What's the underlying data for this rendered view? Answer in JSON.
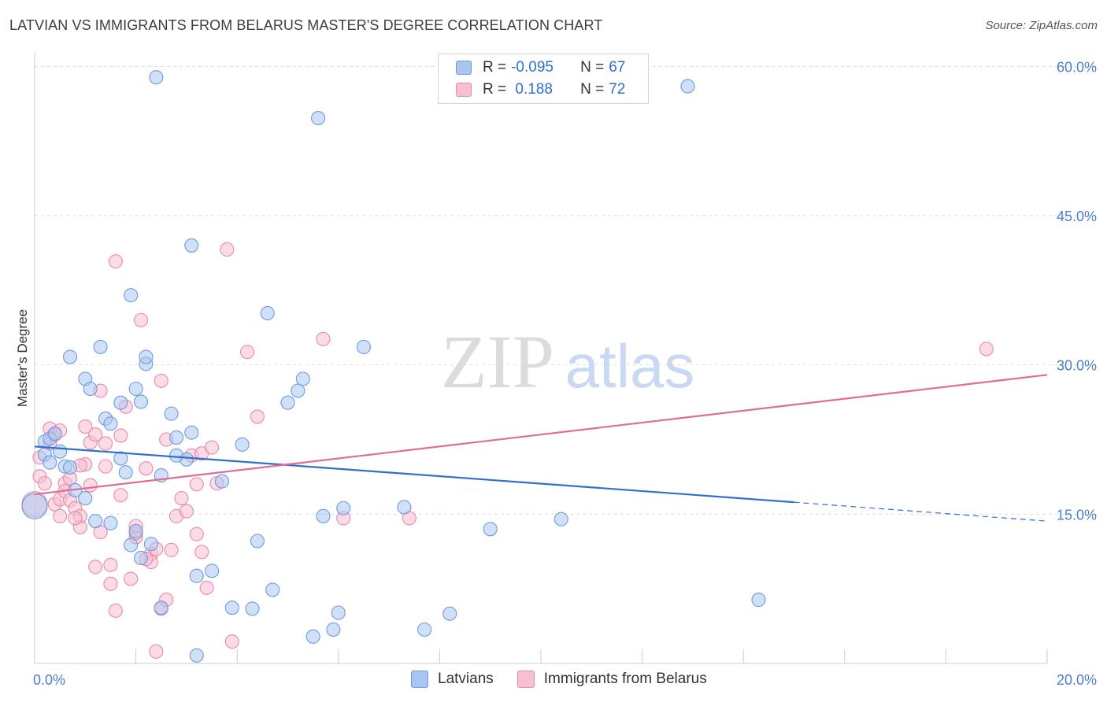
{
  "title": "LATVIAN VS IMMIGRANTS FROM BELARUS MASTER'S DEGREE CORRELATION CHART",
  "source": "Source: ZipAtlas.com",
  "watermark": {
    "zip": "ZIP",
    "atlas": "atlas"
  },
  "legend": {
    "rows": [
      {
        "r_label": "R = ",
        "r_value": "-0.095",
        "n_label": "N = ",
        "n_value": "67"
      },
      {
        "r_label": "R = ",
        "r_value": " 0.188",
        "n_label": "N = ",
        "n_value": "72"
      }
    ]
  },
  "bottom_legend": [
    {
      "label": "Latvians"
    },
    {
      "label": "Immigrants from Belarus"
    }
  ],
  "colors": {
    "blue_fill": "#a9c6f0",
    "blue_stroke": "#6f9ae0",
    "blue_line": "#2f6fd0",
    "pink_fill": "#f7bfd2",
    "pink_stroke": "#e98aa9",
    "pink_line": "#e06c98",
    "tick": "#4a7fd0"
  },
  "chart_data": {
    "type": "scatter",
    "title": "LATVIAN VS IMMIGRANTS FROM BELARUS MASTER'S DEGREE CORRELATION CHART",
    "xlabel": "",
    "ylabel": "Master's Degree",
    "xlim": [
      0,
      20
    ],
    "ylim": [
      0,
      60.5
    ],
    "x_tick_labels": [
      "0.0%",
      "20.0%"
    ],
    "y_ticks": [
      15,
      30,
      45,
      60
    ],
    "y_tick_labels": [
      "15.0%",
      "30.0%",
      "45.0%",
      "60.0%"
    ],
    "series": [
      {
        "name": "Latvians",
        "r": -0.095,
        "n": 67,
        "trend": {
          "x0": 0,
          "y0": 21.8,
          "x1": 15.0,
          "y1": 16.2,
          "dash_to_x": 20.0,
          "dash_to_y": 14.3
        },
        "points": [
          [
            0.0,
            15.8
          ],
          [
            0.2,
            22.3
          ],
          [
            0.3,
            22.6
          ],
          [
            0.4,
            23.1
          ],
          [
            0.2,
            21.0
          ],
          [
            0.3,
            20.2
          ],
          [
            0.5,
            21.3
          ],
          [
            0.6,
            19.8
          ],
          [
            0.7,
            19.7
          ],
          [
            0.8,
            17.4
          ],
          [
            0.7,
            30.8
          ],
          [
            1.0,
            28.6
          ],
          [
            1.1,
            27.6
          ],
          [
            1.3,
            31.8
          ],
          [
            1.4,
            24.6
          ],
          [
            1.5,
            24.1
          ],
          [
            1.7,
            26.2
          ],
          [
            1.7,
            20.6
          ],
          [
            1.8,
            19.2
          ],
          [
            1.9,
            37.0
          ],
          [
            2.0,
            27.6
          ],
          [
            2.1,
            26.3
          ],
          [
            2.2,
            30.1
          ],
          [
            2.2,
            30.8
          ],
          [
            2.4,
            58.9
          ],
          [
            2.5,
            18.9
          ],
          [
            2.7,
            25.1
          ],
          [
            2.8,
            22.7
          ],
          [
            3.0,
            20.5
          ],
          [
            3.1,
            23.2
          ],
          [
            3.1,
            42.0
          ],
          [
            3.2,
            8.8
          ],
          [
            3.2,
            0.8
          ],
          [
            3.5,
            9.3
          ],
          [
            3.7,
            18.3
          ],
          [
            3.9,
            5.6
          ],
          [
            4.1,
            22.0
          ],
          [
            4.3,
            5.5
          ],
          [
            4.4,
            12.3
          ],
          [
            4.6,
            35.2
          ],
          [
            4.7,
            7.4
          ],
          [
            5.0,
            26.2
          ],
          [
            5.2,
            27.4
          ],
          [
            5.3,
            28.6
          ],
          [
            5.5,
            2.7
          ],
          [
            5.6,
            54.8
          ],
          [
            5.7,
            14.8
          ],
          [
            5.9,
            3.4
          ],
          [
            6.0,
            5.1
          ],
          [
            6.1,
            15.6
          ],
          [
            6.5,
            31.8
          ],
          [
            7.3,
            15.7
          ],
          [
            7.7,
            3.4
          ],
          [
            8.2,
            5.0
          ],
          [
            9.0,
            13.5
          ],
          [
            10.4,
            14.5
          ],
          [
            12.9,
            58.0
          ],
          [
            14.3,
            6.4
          ],
          [
            1.5,
            14.1
          ],
          [
            1.9,
            11.9
          ],
          [
            2.0,
            13.3
          ],
          [
            2.1,
            10.6
          ],
          [
            2.3,
            12.0
          ],
          [
            2.5,
            5.6
          ],
          [
            1.0,
            16.6
          ],
          [
            1.2,
            14.3
          ],
          [
            2.8,
            20.9
          ]
        ]
      },
      {
        "name": "Immigrants from Belarus",
        "r": 0.188,
        "n": 72,
        "trend": {
          "x0": 0,
          "y0": 17.0,
          "x1": 20.0,
          "y1": 29.0
        },
        "points": [
          [
            0.0,
            16.0
          ],
          [
            0.1,
            20.7
          ],
          [
            0.1,
            18.8
          ],
          [
            0.2,
            18.1
          ],
          [
            0.3,
            23.6
          ],
          [
            0.3,
            22.1
          ],
          [
            0.4,
            23.0
          ],
          [
            0.4,
            16.0
          ],
          [
            0.5,
            16.5
          ],
          [
            0.5,
            14.8
          ],
          [
            0.6,
            18.1
          ],
          [
            0.6,
            17.3
          ],
          [
            0.7,
            16.4
          ],
          [
            0.7,
            18.6
          ],
          [
            0.8,
            15.6
          ],
          [
            0.9,
            13.7
          ],
          [
            0.9,
            14.8
          ],
          [
            1.0,
            20.0
          ],
          [
            1.0,
            23.8
          ],
          [
            1.1,
            22.2
          ],
          [
            1.1,
            17.9
          ],
          [
            1.2,
            23.0
          ],
          [
            1.3,
            27.4
          ],
          [
            1.4,
            22.1
          ],
          [
            1.4,
            19.8
          ],
          [
            1.5,
            9.9
          ],
          [
            1.5,
            8.0
          ],
          [
            1.6,
            40.4
          ],
          [
            1.7,
            22.9
          ],
          [
            1.7,
            16.9
          ],
          [
            1.8,
            25.8
          ],
          [
            1.9,
            8.5
          ],
          [
            2.0,
            12.7
          ],
          [
            2.0,
            13.1
          ],
          [
            2.1,
            34.5
          ],
          [
            2.2,
            19.6
          ],
          [
            2.3,
            11.0
          ],
          [
            2.3,
            10.2
          ],
          [
            2.4,
            11.5
          ],
          [
            2.4,
            1.2
          ],
          [
            2.5,
            5.5
          ],
          [
            2.5,
            28.4
          ],
          [
            2.6,
            22.5
          ],
          [
            2.7,
            11.4
          ],
          [
            2.8,
            14.8
          ],
          [
            2.9,
            16.6
          ],
          [
            3.0,
            15.3
          ],
          [
            3.1,
            20.9
          ],
          [
            3.2,
            18.0
          ],
          [
            3.3,
            21.1
          ],
          [
            3.3,
            11.2
          ],
          [
            3.4,
            7.6
          ],
          [
            3.5,
            21.7
          ],
          [
            3.6,
            18.1
          ],
          [
            3.8,
            41.6
          ],
          [
            3.9,
            2.2
          ],
          [
            4.2,
            31.3
          ],
          [
            4.4,
            24.8
          ],
          [
            5.7,
            32.6
          ],
          [
            6.1,
            14.6
          ],
          [
            7.4,
            14.6
          ],
          [
            18.8,
            31.6
          ],
          [
            1.2,
            9.7
          ],
          [
            1.6,
            5.3
          ],
          [
            2.2,
            10.5
          ],
          [
            2.0,
            13.8
          ],
          [
            0.9,
            19.9
          ],
          [
            1.3,
            13.2
          ],
          [
            2.6,
            6.4
          ],
          [
            3.2,
            13.0
          ],
          [
            0.5,
            23.4
          ],
          [
            0.8,
            14.6
          ]
        ]
      }
    ]
  }
}
